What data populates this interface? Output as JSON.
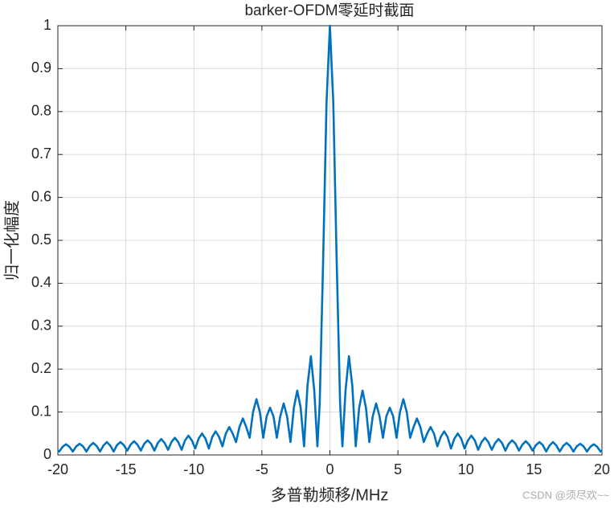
{
  "chart_data": {
    "type": "line",
    "title": "barker-OFDM零延时截面",
    "xlabel": "多普勒频移/MHz",
    "ylabel": "归一化幅度",
    "watermark": "CSDN @须尽欢~~",
    "xlim": [
      -20,
      20
    ],
    "xticks": [
      -20,
      -15,
      -10,
      -5,
      0,
      5,
      10,
      15,
      20
    ],
    "ylim": [
      0,
      1
    ],
    "yticks": [
      0,
      0.1,
      0.2,
      0.3,
      0.4,
      0.5,
      0.6,
      0.7,
      0.8,
      0.9,
      1
    ],
    "grid": true,
    "x": [
      -20,
      -19.9,
      -19.65,
      -19.4,
      -19.15,
      -18.9,
      -18.65,
      -18.4,
      -18.15,
      -17.9,
      -17.65,
      -17.4,
      -17.15,
      -16.9,
      -16.65,
      -16.4,
      -16.15,
      -15.9,
      -15.65,
      -15.4,
      -15.15,
      -14.9,
      -14.65,
      -14.4,
      -14.15,
      -13.9,
      -13.65,
      -13.4,
      -13.15,
      -12.9,
      -12.65,
      -12.4,
      -12.15,
      -11.9,
      -11.65,
      -11.4,
      -11.15,
      -10.9,
      -10.65,
      -10.4,
      -10.15,
      -9.9,
      -9.65,
      -9.4,
      -9.15,
      -8.9,
      -8.65,
      -8.4,
      -8.15,
      -7.9,
      -7.65,
      -7.4,
      -7.15,
      -6.9,
      -6.65,
      -6.4,
      -6.15,
      -5.9,
      -5.65,
      -5.4,
      -5.15,
      -4.9,
      -4.65,
      -4.4,
      -4.15,
      -3.9,
      -3.65,
      -3.4,
      -3.15,
      -2.9,
      -2.65,
      -2.4,
      -2.15,
      -1.9,
      -1.65,
      -1.4,
      -1.15,
      -0.92,
      -0.75,
      -0.5,
      -0.25,
      0,
      0.25,
      0.5,
      0.75,
      0.92,
      1.15,
      1.4,
      1.65,
      1.9,
      2.15,
      2.4,
      2.65,
      2.9,
      3.15,
      3.4,
      3.65,
      3.9,
      4.15,
      4.4,
      4.65,
      4.9,
      5.15,
      5.4,
      5.65,
      5.9,
      6.15,
      6.4,
      6.65,
      6.9,
      7.15,
      7.4,
      7.65,
      7.9,
      8.15,
      8.4,
      8.65,
      8.9,
      9.15,
      9.4,
      9.65,
      9.9,
      10.15,
      10.4,
      10.65,
      10.9,
      11.15,
      11.4,
      11.65,
      11.9,
      12.15,
      12.4,
      12.65,
      12.9,
      13.15,
      13.4,
      13.65,
      13.9,
      14.15,
      14.4,
      14.65,
      14.9,
      15.15,
      15.4,
      15.65,
      15.9,
      16.15,
      16.4,
      16.65,
      16.9,
      17.15,
      17.4,
      17.65,
      17.9,
      18.15,
      18.4,
      18.65,
      18.9,
      19.15,
      19.4,
      19.65,
      19.9,
      20
    ],
    "series": [
      {
        "color": "#0072bd",
        "values": [
          0.01,
          0.008,
          0.019,
          0.025,
          0.019,
          0.008,
          0.02,
          0.026,
          0.02,
          0.008,
          0.021,
          0.028,
          0.021,
          0.008,
          0.022,
          0.03,
          0.022,
          0.008,
          0.023,
          0.03,
          0.023,
          0.01,
          0.024,
          0.032,
          0.024,
          0.01,
          0.026,
          0.034,
          0.026,
          0.01,
          0.028,
          0.037,
          0.028,
          0.012,
          0.03,
          0.04,
          0.03,
          0.012,
          0.034,
          0.045,
          0.034,
          0.015,
          0.038,
          0.05,
          0.038,
          0.015,
          0.042,
          0.055,
          0.042,
          0.02,
          0.05,
          0.065,
          0.05,
          0.03,
          0.065,
          0.085,
          0.065,
          0.04,
          0.1,
          0.13,
          0.1,
          0.04,
          0.09,
          0.11,
          0.09,
          0.04,
          0.09,
          0.12,
          0.09,
          0.03,
          0.11,
          0.15,
          0.11,
          0.02,
          0.16,
          0.23,
          0.15,
          0.02,
          0.12,
          0.45,
          0.82,
          1,
          0.82,
          0.45,
          0.12,
          0.02,
          0.15,
          0.23,
          0.16,
          0.02,
          0.11,
          0.15,
          0.11,
          0.03,
          0.09,
          0.12,
          0.09,
          0.04,
          0.09,
          0.11,
          0.09,
          0.04,
          0.1,
          0.13,
          0.1,
          0.04,
          0.065,
          0.085,
          0.065,
          0.03,
          0.05,
          0.065,
          0.05,
          0.02,
          0.042,
          0.055,
          0.042,
          0.015,
          0.038,
          0.05,
          0.038,
          0.015,
          0.034,
          0.045,
          0.034,
          0.012,
          0.03,
          0.04,
          0.03,
          0.012,
          0.028,
          0.037,
          0.028,
          0.01,
          0.026,
          0.034,
          0.026,
          0.01,
          0.024,
          0.032,
          0.024,
          0.01,
          0.023,
          0.03,
          0.023,
          0.008,
          0.022,
          0.03,
          0.022,
          0.008,
          0.021,
          0.028,
          0.021,
          0.008,
          0.02,
          0.026,
          0.02,
          0.008,
          0.019,
          0.025,
          0.019,
          0.008,
          0.01
        ]
      }
    ]
  }
}
